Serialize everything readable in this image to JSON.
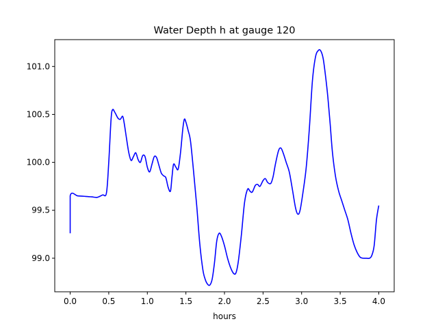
{
  "chart_data": {
    "type": "line",
    "title": "Water Depth h at gauge 120",
    "xlabel": "hours",
    "ylabel": "",
    "xlim": [
      -0.2,
      4.2
    ],
    "ylim": [
      98.65,
      101.28
    ],
    "x_ticks": [
      0.0,
      0.5,
      1.0,
      1.5,
      2.0,
      2.5,
      3.0,
      3.5,
      4.0
    ],
    "x_tick_labels": [
      "0.0",
      "0.5",
      "1.0",
      "1.5",
      "2.0",
      "2.5",
      "3.0",
      "3.5",
      "4.0"
    ],
    "y_ticks": [
      99.0,
      99.5,
      100.0,
      100.5,
      101.0
    ],
    "y_tick_labels": [
      "99.0",
      "99.5",
      "100.0",
      "100.5",
      "101.0"
    ],
    "grid": false,
    "legend": "none",
    "series": [
      {
        "color": "#0000ff",
        "x": [
          0.0,
          0.0,
          0.1,
          0.2,
          0.28,
          0.35,
          0.42,
          0.47,
          0.5,
          0.53,
          0.55,
          0.58,
          0.62,
          0.65,
          0.68,
          0.7,
          0.73,
          0.76,
          0.79,
          0.82,
          0.85,
          0.88,
          0.91,
          0.94,
          0.97,
          1.0,
          1.03,
          1.06,
          1.09,
          1.12,
          1.15,
          1.18,
          1.21,
          1.24,
          1.27,
          1.3,
          1.32,
          1.34,
          1.37,
          1.4,
          1.43,
          1.46,
          1.48,
          1.5,
          1.53,
          1.56,
          1.6,
          1.64,
          1.68,
          1.72,
          1.75,
          1.78,
          1.81,
          1.84,
          1.87,
          1.9,
          1.93,
          1.96,
          2.0,
          2.04,
          2.08,
          2.12,
          2.15,
          2.18,
          2.22,
          2.26,
          2.3,
          2.33,
          2.36,
          2.4,
          2.43,
          2.46,
          2.5,
          2.53,
          2.56,
          2.6,
          2.63,
          2.66,
          2.7,
          2.73,
          2.76,
          2.8,
          2.84,
          2.88,
          2.92,
          2.95,
          2.98,
          3.02,
          3.06,
          3.1,
          3.14,
          3.18,
          3.22,
          3.25,
          3.28,
          3.31,
          3.34,
          3.37,
          3.4,
          3.44,
          3.48,
          3.52,
          3.56,
          3.6,
          3.64,
          3.68,
          3.72,
          3.76,
          3.8,
          3.84,
          3.88,
          3.91,
          3.94,
          3.97,
          4.0
        ],
        "y": [
          99.26,
          99.65,
          99.65,
          99.645,
          99.64,
          99.635,
          99.66,
          99.68,
          100.0,
          100.45,
          100.55,
          100.52,
          100.46,
          100.45,
          100.48,
          100.41,
          100.25,
          100.1,
          100.02,
          100.06,
          100.1,
          100.03,
          100.0,
          100.07,
          100.06,
          99.95,
          99.9,
          99.98,
          100.06,
          100.05,
          99.97,
          99.89,
          99.86,
          99.84,
          99.74,
          99.7,
          99.85,
          99.98,
          99.95,
          99.93,
          100.1,
          100.35,
          100.45,
          100.42,
          100.33,
          100.22,
          99.9,
          99.55,
          99.15,
          98.88,
          98.78,
          98.73,
          98.72,
          98.78,
          98.95,
          99.18,
          99.26,
          99.23,
          99.13,
          99.0,
          98.9,
          98.84,
          98.85,
          98.97,
          99.25,
          99.58,
          99.72,
          99.7,
          99.69,
          99.76,
          99.77,
          99.75,
          99.81,
          99.83,
          99.79,
          99.78,
          99.85,
          99.98,
          100.12,
          100.15,
          100.1,
          100.0,
          99.9,
          99.72,
          99.53,
          99.46,
          99.5,
          99.7,
          99.95,
          100.35,
          100.85,
          101.1,
          101.17,
          101.16,
          101.08,
          100.9,
          100.68,
          100.4,
          100.1,
          99.85,
          99.7,
          99.6,
          99.5,
          99.4,
          99.26,
          99.14,
          99.06,
          99.01,
          99.0,
          99.0,
          99.0,
          99.03,
          99.13,
          99.4,
          99.55
        ]
      }
    ]
  }
}
